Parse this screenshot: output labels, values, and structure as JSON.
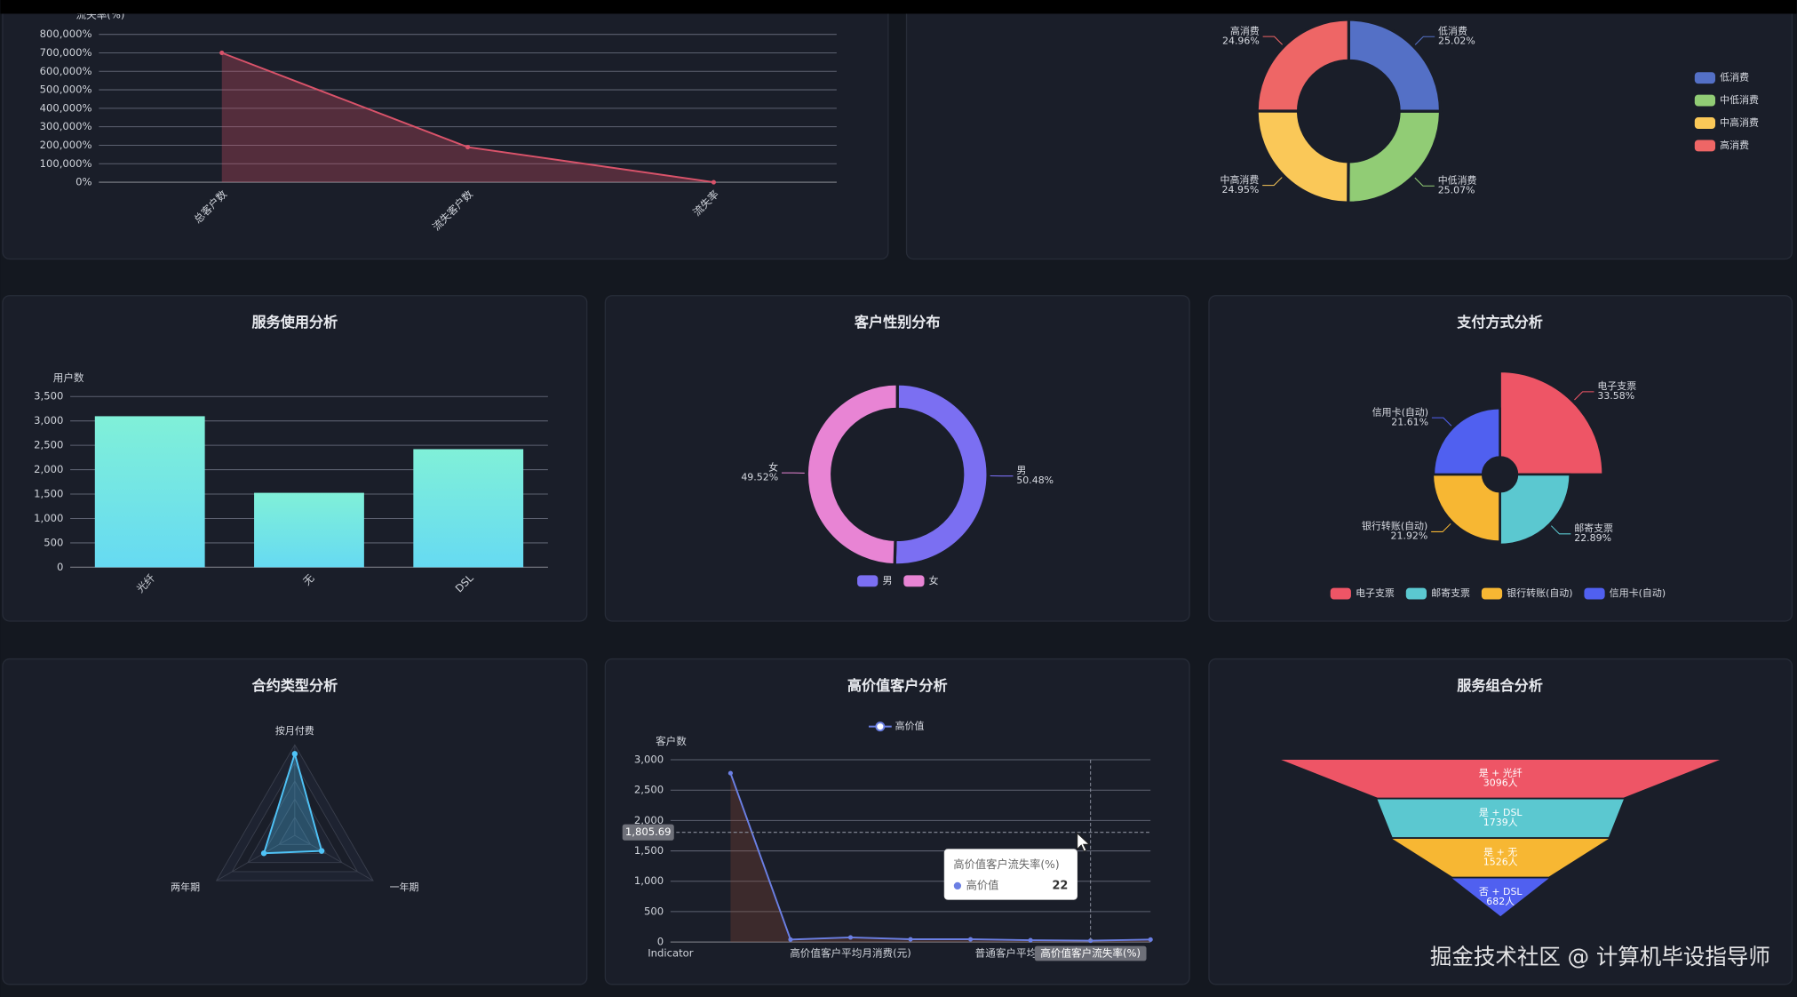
{
  "chart_data": [
    {
      "type": "line",
      "y_label": "流失率(%)",
      "categories": [
        "总客户数",
        "流失客户数",
        "流失率"
      ],
      "values": [
        700000,
        190000,
        0
      ],
      "color": "#d9536a",
      "ylim": [
        0,
        800000
      ],
      "yticks": [
        {
          "value": 0,
          "label": "0%"
        },
        {
          "value": 100000,
          "label": "100,000%"
        },
        {
          "value": 200000,
          "label": "200,000%"
        },
        {
          "value": 300000,
          "label": "300,000%"
        },
        {
          "value": 400000,
          "label": "400,000%"
        },
        {
          "value": 500000,
          "label": "500,000%"
        },
        {
          "value": 600000,
          "label": "600,000%"
        },
        {
          "value": 700000,
          "label": "700,000%"
        },
        {
          "value": 800000,
          "label": "800,000%"
        }
      ],
      "grid": true
    },
    {
      "type": "pie",
      "categories": [
        "低消费",
        "中低消费",
        "中高消费",
        "高消费"
      ],
      "values": [
        25.02,
        25.07,
        24.95,
        24.96
      ],
      "value_labels": [
        "25.02%",
        "25.07%",
        "24.95%",
        "24.96%"
      ],
      "colors": [
        "#5470c6",
        "#91cc75",
        "#fac858",
        "#ee6666"
      ],
      "legend": "right"
    },
    {
      "type": "bar",
      "title": "服务使用分析",
      "y_label": "用户数",
      "categories": [
        "光纤",
        "无",
        "DSL"
      ],
      "values": [
        3096,
        1526,
        2421
      ],
      "color": [
        "#80f0d8",
        "#66daf2"
      ],
      "ylim": [
        0,
        3500
      ],
      "yticks": [
        0,
        500,
        {
          "value": 1000,
          "label": "1,000"
        },
        {
          "value": 1500,
          "label": "1,500"
        },
        {
          "value": 2000,
          "label": "2,000"
        },
        {
          "value": 2500,
          "label": "2,500"
        },
        {
          "value": 3000,
          "label": "3,000"
        },
        {
          "value": 3500,
          "label": "3,500"
        }
      ],
      "grid": true
    },
    {
      "type": "pie",
      "title": "客户性别分布",
      "categories": [
        "男",
        "女"
      ],
      "values": [
        50.48,
        49.52
      ],
      "value_labels": [
        "50.48%",
        "49.52%"
      ],
      "colors": [
        "#7b6ff2",
        "#e884d4"
      ],
      "legend": "bottom"
    },
    {
      "type": "rose",
      "title": "支付方式分析",
      "categories": [
        "电子支票",
        "邮寄支票",
        "银行转账(自动)",
        "信用卡(自动)"
      ],
      "values": [
        33.58,
        22.89,
        21.92,
        21.61
      ],
      "value_labels": [
        "33.58%",
        "22.89%",
        "21.92%",
        "21.61%"
      ],
      "colors": [
        "#ee5566",
        "#5bc8d0",
        "#f7b733",
        "#5060f0"
      ],
      "legend": "bottom"
    },
    {
      "type": "radar",
      "title": "合约类型分析",
      "indicators": [
        "按月付费",
        "一年期",
        "两年期"
      ],
      "values": [
        3875,
        1473,
        1695
      ],
      "rlim": [
        0,
        4300
      ],
      "color": "#4fc3f7"
    },
    {
      "type": "line",
      "title": "高价值客户分析",
      "y_label": "客户数",
      "categories": [
        "Indicator",
        null,
        null,
        "高价值客户平均月消费(元)",
        null,
        null,
        "普通客户平均月消费(元)",
        "高价值客户流失率(%)",
        null
      ],
      "series": [
        {
          "name": "高价值",
          "color": "#6b7fe3",
          "area_color": "#8a4a35",
          "values": [
            null,
            2780,
            40,
            75,
            45,
            45,
            30,
            22,
            40
          ]
        }
      ],
      "ylim": [
        0,
        3000
      ],
      "yticks": [
        0,
        500,
        {
          "value": 1000,
          "label": "1,000"
        },
        {
          "value": 1500,
          "label": "1,500"
        },
        {
          "value": 2000,
          "label": "2,000"
        },
        {
          "value": 2500,
          "label": "2,500"
        },
        {
          "value": 3000,
          "label": "3,000"
        }
      ],
      "grid": true,
      "tooltip": {
        "title": "高价值客户流失率(%)",
        "series": "高价值",
        "value": 22
      },
      "axis_pointer": {
        "value": 1805.69,
        "label": "1,805.69"
      }
    },
    {
      "type": "funnel",
      "title": "服务组合分析",
      "categories": [
        "是 + 光纤",
        "是 + DSL",
        "是 + 无",
        "否 + DSL"
      ],
      "values": [
        3096,
        1739,
        1526,
        682
      ],
      "value_labels": [
        "3096人",
        "1739人",
        "1526人",
        "682人"
      ],
      "colors": [
        "#ee5566",
        "#5bc8d0",
        "#f7b733",
        "#5060f0"
      ]
    }
  ],
  "watermark": "掘金技术社区 @ 计算机毕设指导师"
}
